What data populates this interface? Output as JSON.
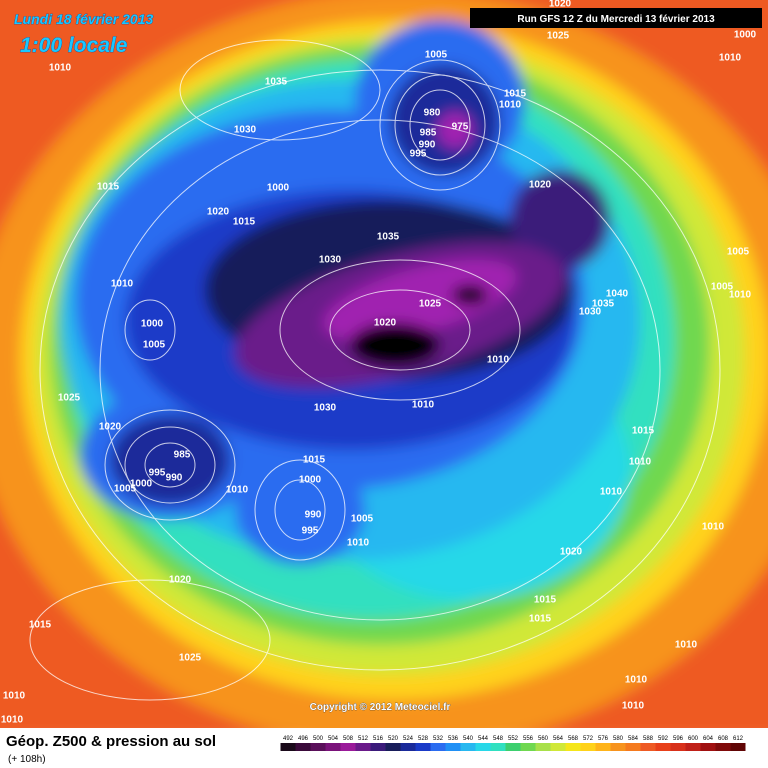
{
  "header": {
    "date": "Lundi 18 février 2013",
    "time": "1:00 locale",
    "run": "Run GFS 12 Z du Mercredi 13 février 2013"
  },
  "map": {
    "isobar_labels": [
      1020,
      1025,
      1000,
      1010,
      1010,
      1035,
      1030,
      1015,
      1020,
      1015,
      1005,
      1000,
      980,
      985,
      990,
      995,
      975,
      1015,
      1010,
      1020,
      1035,
      1030,
      1005,
      1005,
      1010,
      1040,
      1035,
      1030,
      1025,
      1020,
      1010,
      1010,
      1030,
      1015,
      1000,
      990,
      995,
      1005,
      1010,
      1010,
      985,
      990,
      995,
      1000,
      1005,
      1020,
      1025,
      1000,
      1005,
      1010,
      1020,
      1015,
      1025,
      1010,
      1010,
      1015,
      1010,
      1010,
      1010,
      1020,
      1015,
      1015,
      1010,
      1010,
      1010
    ]
  },
  "copyright": "Copyright © 2012 Meteociel.fr",
  "footer": {
    "title": "Géop. Z500 & pression au sol",
    "lead": "(+ 108h)"
  },
  "legend": {
    "ticks": [
      492,
      496,
      500,
      504,
      508,
      512,
      516,
      520,
      524,
      528,
      532,
      536,
      540,
      544,
      548,
      552,
      556,
      560,
      564,
      568,
      572,
      576,
      580,
      584,
      588,
      592,
      596,
      600,
      604,
      608,
      612
    ],
    "colors": [
      "#1a0a1a",
      "#3a0a3a",
      "#5a0f5a",
      "#7a127a",
      "#9a1a9a",
      "#6a1a8a",
      "#3a1a7a",
      "#181d5a",
      "#1a2a9a",
      "#1a3ac8",
      "#2b6cf0",
      "#2090f5",
      "#28b8f0",
      "#28d8e8",
      "#30e0c0",
      "#3ccf6e",
      "#70d850",
      "#a8e04a",
      "#d0e838",
      "#f5e61a",
      "#ffd21a",
      "#ffb41a",
      "#f7931e",
      "#f57a1e",
      "#ee5a24",
      "#e8401a",
      "#d8301a",
      "#c02018",
      "#a01010",
      "#800a0a",
      "#600505"
    ]
  }
}
